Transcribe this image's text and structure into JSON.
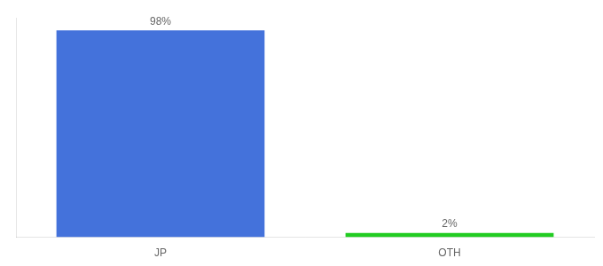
{
  "chart_data": {
    "type": "bar",
    "categories": [
      "JP",
      "OTH"
    ],
    "values": [
      98,
      2
    ],
    "value_labels": [
      "98%",
      "2%"
    ],
    "colors": [
      "#4472db",
      "#22cc22"
    ],
    "ylim": [
      0,
      104
    ],
    "data_labels": true,
    "tick_labels": "x",
    "grid": false
  }
}
